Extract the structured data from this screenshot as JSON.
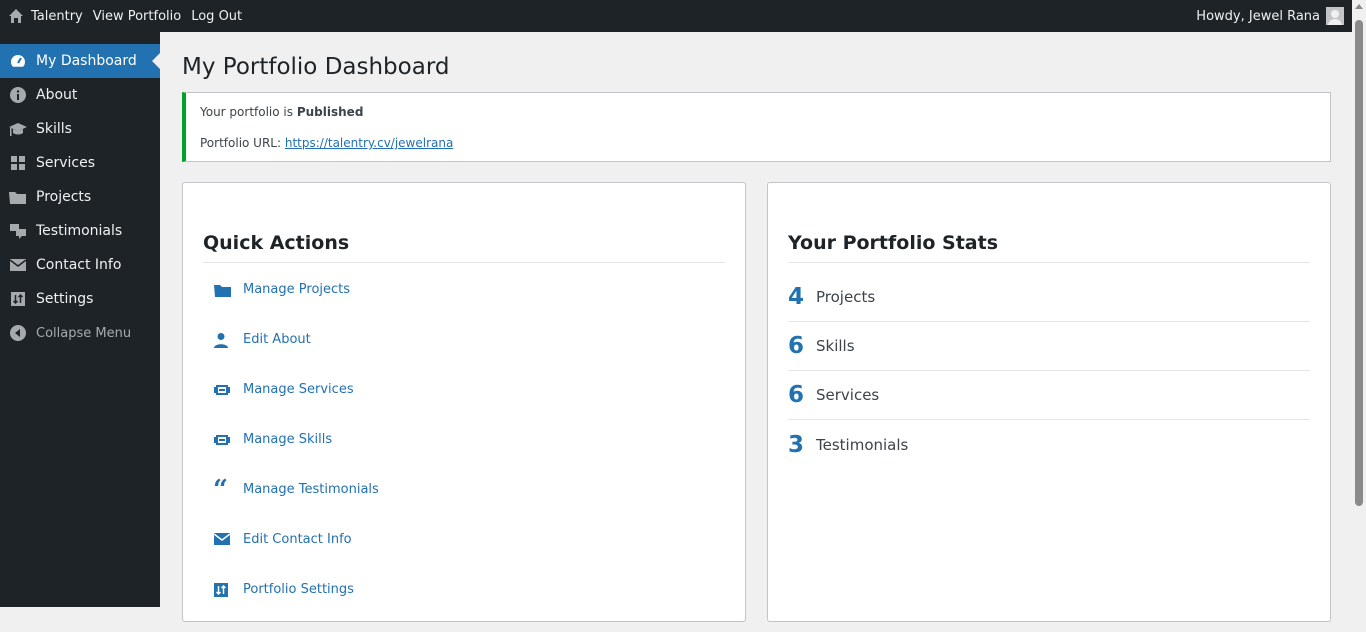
{
  "topbar": {
    "site": "Talentry",
    "view": "View Portfolio",
    "logout": "Log Out",
    "howdy": "Howdy, Jewel Rana"
  },
  "sidebar": {
    "items": [
      {
        "label": "My Dashboard",
        "icon": "dashboard-icon",
        "active": true
      },
      {
        "label": "About",
        "icon": "info-icon"
      },
      {
        "label": "Skills",
        "icon": "graduation-cap-icon"
      },
      {
        "label": "Services",
        "icon": "grid-icon"
      },
      {
        "label": "Projects",
        "icon": "folder-icon"
      },
      {
        "label": "Testimonials",
        "icon": "chat-icon"
      },
      {
        "label": "Contact Info",
        "icon": "envelope-icon"
      },
      {
        "label": "Settings",
        "icon": "sliders-icon"
      }
    ],
    "collapse": "Collapse Menu"
  },
  "page": {
    "title": "My Portfolio Dashboard"
  },
  "notice": {
    "status_prefix": "Your portfolio is",
    "status": "Published",
    "url_label": "Portfolio URL:",
    "url": "https://talentry.cv/jewelrana",
    "accent": "#00a32a"
  },
  "quick_actions": {
    "title": "Quick Actions",
    "items": [
      {
        "label": "Manage Projects",
        "icon": "folder-icon"
      },
      {
        "label": "Edit About",
        "icon": "user-icon"
      },
      {
        "label": "Manage Services",
        "icon": "id-card-icon"
      },
      {
        "label": "Manage Skills",
        "icon": "id-card-icon"
      },
      {
        "label": "Manage Testimonials",
        "icon": "quote-icon"
      },
      {
        "label": "Edit Contact Info",
        "icon": "envelope-icon"
      },
      {
        "label": "Portfolio Settings",
        "icon": "sliders-icon"
      }
    ]
  },
  "stats": {
    "title": "Your Portfolio Stats",
    "items": [
      {
        "value": "4",
        "label": "Projects"
      },
      {
        "value": "6",
        "label": "Skills"
      },
      {
        "value": "6",
        "label": "Services"
      },
      {
        "value": "3",
        "label": "Testimonials"
      }
    ]
  },
  "colors": {
    "accent": "#2271b1",
    "sidebar": "#1d2327"
  }
}
